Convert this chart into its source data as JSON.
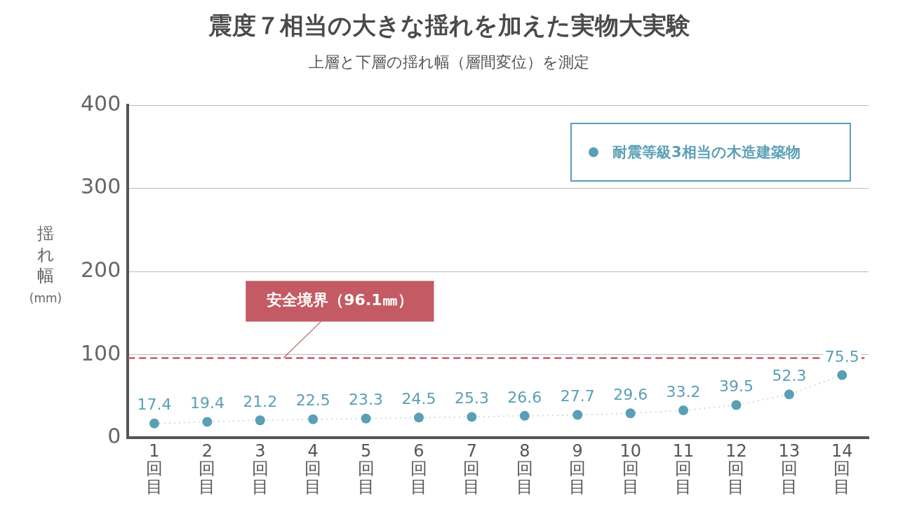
{
  "chart_data": {
    "type": "line",
    "title": "震度７相当の大きな揺れを加えた実物大実験",
    "subtitle": "上層と下層の揺れ幅（層間変位）を測定",
    "ylabel": "揺れ幅\n(mm)",
    "categories": [
      "1回目",
      "2回目",
      "3回目",
      "4回目",
      "5回目",
      "6回目",
      "7回目",
      "8回目",
      "9回目",
      "10回目",
      "11回目",
      "12回目",
      "13回目",
      "14回目"
    ],
    "series": [
      {
        "name": "耐震等級3相当の木造建築物",
        "color": "#5a9fb5",
        "values": [
          17.4,
          19.4,
          21.2,
          22.5,
          23.3,
          24.5,
          25.3,
          26.6,
          27.7,
          29.6,
          33.2,
          39.5,
          52.3,
          75.5
        ]
      }
    ],
    "ylim": [
      0,
      400
    ],
    "yticks": [
      0,
      100,
      200,
      300,
      400
    ],
    "grid": "y",
    "legend": "top right",
    "marker": "circle",
    "line_style": "dotted",
    "data_labels": true,
    "ref_lines": [
      {
        "axis": "y",
        "value": 96.1,
        "label": "安全境界（96.1㎜）",
        "color": "#c45a63",
        "line_style": "dashed"
      }
    ]
  }
}
